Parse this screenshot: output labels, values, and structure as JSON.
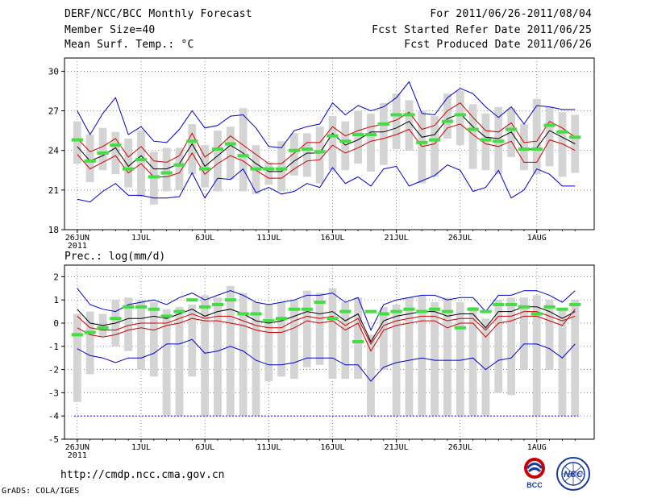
{
  "header": {
    "title": "DERF/NCC/BCC Monthly Forecast",
    "member_size": "Member Size=40",
    "var_top": "Mean Surf. Temp.: °C",
    "period": "For 2011/06/26-2011/08/04",
    "started": "Fcst Started Refer Date 2011/06/25",
    "produced": "Fcst Produced Date 2011/06/26"
  },
  "footer": {
    "url": "http://cmdp.ncc.cma.gov.cn",
    "grads": "GrADS: COLA/IGES",
    "logo_bcc": "BCC",
    "logo_ncc": "NCC"
  },
  "colors": {
    "grid": "#555555",
    "box": "#d4d4d4",
    "mean": "#000000",
    "spread": "#cc0000",
    "envelope": "#0000cc",
    "clim": "#44dd44"
  },
  "chart_data": [
    {
      "type": "line",
      "title": "Mean Surf. Temp.: °C",
      "ylim": [
        18,
        31
      ],
      "yticks": [
        18,
        21,
        24,
        27,
        30
      ],
      "x": [
        26,
        27,
        28,
        29,
        30,
        31,
        32,
        33,
        34,
        35,
        36,
        37,
        38,
        39,
        40,
        41,
        42,
        43,
        44,
        45,
        46,
        47,
        48,
        49,
        50,
        51,
        52,
        53,
        54,
        55,
        56,
        57,
        58,
        59,
        60,
        61,
        62,
        63,
        64,
        65
      ],
      "xticks": [
        {
          "x": 26,
          "label": "26JUN",
          "sub": "2011"
        },
        {
          "x": 31,
          "label": "1JUL"
        },
        {
          "x": 36,
          "label": "6JUL"
        },
        {
          "x": 41,
          "label": "11JUL"
        },
        {
          "x": 46,
          "label": "16JUL"
        },
        {
          "x": 51,
          "label": "21JUL"
        },
        {
          "x": 56,
          "label": "26JUL"
        },
        {
          "x": 62,
          "label": "1AUG"
        }
      ],
      "series": [
        {
          "name": "mean",
          "values": [
            24.3,
            23.2,
            23.6,
            24.2,
            22.8,
            23.6,
            22.6,
            22.6,
            23.0,
            24.5,
            22.8,
            23.6,
            24.4,
            23.8,
            23.0,
            22.4,
            22.4,
            23.2,
            23.8,
            23.8,
            25.3,
            24.4,
            24.8,
            25.4,
            25.4,
            25.7,
            26.2,
            25.0,
            25.2,
            26.4,
            26.8,
            25.8,
            25.0,
            24.9,
            25.4,
            24.0,
            24.2,
            25.5,
            25.0,
            24.5
          ]
        },
        {
          "name": "upper",
          "values": [
            24.9,
            23.9,
            24.3,
            24.9,
            23.5,
            24.3,
            23.2,
            23.1,
            23.6,
            25.3,
            23.5,
            24.2,
            25.1,
            24.4,
            23.7,
            23.0,
            23.0,
            23.8,
            24.6,
            24.6,
            25.8,
            25.1,
            25.5,
            25.8,
            26.0,
            26.3,
            26.9,
            25.6,
            25.9,
            27.0,
            27.6,
            26.5,
            25.5,
            25.4,
            26.1,
            24.6,
            24.7,
            26.2,
            25.7,
            25.0
          ]
        },
        {
          "name": "lower",
          "values": [
            23.7,
            22.6,
            23.1,
            23.6,
            22.3,
            23.0,
            22.0,
            22.0,
            22.3,
            23.8,
            22.2,
            23.0,
            23.6,
            23.2,
            22.5,
            21.9,
            21.9,
            22.6,
            23.2,
            23.3,
            24.4,
            23.8,
            24.2,
            24.7,
            24.9,
            25.2,
            25.6,
            24.3,
            24.5,
            25.7,
            26.0,
            25.2,
            24.5,
            24.3,
            24.7,
            23.1,
            23.1,
            24.8,
            24.5,
            24.0
          ]
        },
        {
          "name": "max",
          "values": [
            27.0,
            25.2,
            26.8,
            28.0,
            25.2,
            25.8,
            24.7,
            24.6,
            25.6,
            27.0,
            25.7,
            25.9,
            26.6,
            26.7,
            25.7,
            24.3,
            24.2,
            25.5,
            25.8,
            26.0,
            27.6,
            26.7,
            27.4,
            27.0,
            27.3,
            28.0,
            29.2,
            26.8,
            26.7,
            28.0,
            28.7,
            28.3,
            27.3,
            26.5,
            27.3,
            26.0,
            27.4,
            27.3,
            27.1,
            27.1
          ]
        },
        {
          "name": "min",
          "values": [
            20.3,
            20.1,
            20.9,
            21.5,
            20.6,
            20.6,
            20.4,
            20.4,
            20.5,
            22.3,
            20.4,
            21.9,
            21.8,
            22.6,
            20.8,
            21.2,
            20.7,
            20.9,
            21.5,
            21.2,
            22.7,
            21.5,
            22.0,
            21.3,
            22.6,
            22.8,
            21.3,
            21.7,
            22.1,
            22.9,
            22.5,
            20.9,
            21.2,
            22.5,
            20.4,
            21.0,
            22.6,
            22.2,
            21.3,
            21.3
          ]
        }
      ],
      "box_top": [
        26.2,
        25.2,
        25.7,
        25.4,
        24.9,
        25.5,
        23.9,
        24.2,
        24.2,
        26.0,
        24.4,
        25.5,
        25.8,
        27.2,
        24.4,
        23.1,
        24.7,
        25.3,
        25.3,
        25.8,
        26.6,
        26.2,
        27.0,
        26.8,
        27.6,
        28.3,
        27.8,
        27.0,
        26.6,
        28.3,
        28.5,
        27.5,
        26.8,
        27.3,
        27.2,
        26.0,
        27.9,
        27.3,
        26.9,
        26.7
      ],
      "box_bottom": [
        23.0,
        21.6,
        22.5,
        22.2,
        21.2,
        20.5,
        19.9,
        20.9,
        21.0,
        22.2,
        21.2,
        20.9,
        21.8,
        20.9,
        20.7,
        21.4,
        20.9,
        22.1,
        22.0,
        21.5,
        22.5,
        22.5,
        23.0,
        22.4,
        22.9,
        24.1,
        24.0,
        21.5,
        22.0,
        24.9,
        24.4,
        22.6,
        22.5,
        22.2,
        23.5,
        22.5,
        22.2,
        22.8,
        22.0,
        22.3
      ],
      "clim": [
        24.8,
        23.2,
        23.8,
        24.4,
        22.6,
        23.3,
        22.0,
        22.3,
        22.9,
        24.7,
        22.6,
        24.1,
        24.5,
        23.6,
        22.6,
        22.6,
        22.6,
        24.0,
        24.1,
        23.9,
        25.1,
        24.7,
        25.2,
        25.2,
        26.0,
        26.7,
        26.7,
        24.6,
        24.8,
        26.2,
        26.7,
        25.6,
        24.8,
        24.7,
        25.6,
        24.1,
        24.1,
        25.9,
        25.4,
        25.0
      ]
    },
    {
      "type": "line",
      "title": "Prec.: log(mm/d)",
      "ylim": [
        -5,
        2.5
      ],
      "yticks": [
        -5,
        -4,
        -3,
        -2,
        -1,
        0,
        1,
        2
      ],
      "x": [
        26,
        27,
        28,
        29,
        30,
        31,
        32,
        33,
        34,
        35,
        36,
        37,
        38,
        39,
        40,
        41,
        42,
        43,
        44,
        45,
        46,
        47,
        48,
        49,
        50,
        51,
        52,
        53,
        54,
        55,
        56,
        57,
        58,
        59,
        60,
        61,
        62,
        63,
        64,
        65
      ],
      "xticks": [
        {
          "x": 26,
          "label": "26JUN",
          "sub": "2011"
        },
        {
          "x": 31,
          "label": "1JUL"
        },
        {
          "x": 36,
          "label": "6JUL"
        },
        {
          "x": 41,
          "label": "11JUL"
        },
        {
          "x": 46,
          "label": "16JUL"
        },
        {
          "x": 51,
          "label": "21JUL"
        },
        {
          "x": 56,
          "label": "26JUL"
        },
        {
          "x": 62,
          "label": "1AUG"
        }
      ],
      "series": [
        {
          "name": "mean",
          "values": [
            0.6,
            0.0,
            -0.1,
            0.0,
            0.2,
            0.2,
            0.3,
            0.2,
            0.4,
            0.6,
            0.3,
            0.5,
            0.6,
            0.4,
            0.1,
            0.0,
            0.1,
            0.3,
            0.5,
            0.4,
            0.5,
            0.1,
            0.4,
            -0.8,
            0.1,
            0.3,
            0.4,
            0.5,
            0.5,
            0.3,
            0.4,
            0.4,
            -0.2,
            0.5,
            0.5,
            0.7,
            0.7,
            0.5,
            0.2,
            0.5
          ]
        },
        {
          "name": "upper",
          "values": [
            0.3,
            -0.2,
            -0.3,
            -0.3,
            -0.1,
            0.0,
            0.0,
            0.0,
            0.2,
            0.4,
            0.2,
            0.3,
            0.3,
            0.1,
            -0.1,
            -0.2,
            -0.2,
            0.1,
            0.3,
            0.2,
            0.3,
            -0.1,
            0.2,
            -0.9,
            -0.1,
            0.1,
            0.2,
            0.3,
            0.3,
            0.1,
            0.2,
            0.2,
            -0.3,
            0.3,
            0.3,
            0.5,
            0.5,
            0.3,
            0.1,
            0.3
          ]
        },
        {
          "name": "lower",
          "values": [
            -0.2,
            -0.5,
            -0.6,
            -0.5,
            -0.3,
            -0.2,
            -0.3,
            -0.1,
            0.0,
            0.2,
            0.1,
            0.1,
            0.0,
            -0.1,
            -0.3,
            -0.4,
            -0.4,
            -0.2,
            0.1,
            0.0,
            0.1,
            -0.3,
            0.0,
            -1.2,
            -0.3,
            -0.1,
            0.0,
            0.1,
            0.1,
            -0.2,
            0.0,
            0.0,
            -0.6,
            0.0,
            0.1,
            0.3,
            0.3,
            0.1,
            -0.1,
            0.6
          ]
        },
        {
          "name": "max",
          "values": [
            1.5,
            0.8,
            0.6,
            0.5,
            0.8,
            0.9,
            1.0,
            0.8,
            1.1,
            1.3,
            1.0,
            1.2,
            1.4,
            1.2,
            0.9,
            0.8,
            0.9,
            1.0,
            1.2,
            1.2,
            1.3,
            0.9,
            1.1,
            -0.3,
            0.8,
            1.0,
            1.1,
            1.2,
            1.2,
            1.0,
            1.1,
            1.1,
            0.5,
            1.2,
            1.2,
            1.4,
            1.4,
            1.2,
            0.9,
            1.4
          ]
        },
        {
          "name": "min",
          "values": [
            -1.1,
            -1.4,
            -1.5,
            -1.7,
            -1.5,
            -1.5,
            -1.3,
            -0.9,
            -0.9,
            -0.7,
            -1.3,
            -1.2,
            -1.0,
            -1.2,
            -1.6,
            -1.8,
            -1.8,
            -1.7,
            -1.5,
            -1.5,
            -1.5,
            -1.8,
            -1.8,
            -2.5,
            -1.9,
            -1.7,
            -1.6,
            -1.5,
            -1.6,
            -1.6,
            -1.6,
            -1.5,
            -2.0,
            -1.6,
            -1.5,
            -0.9,
            -0.9,
            -1.1,
            -1.5,
            -0.9
          ]
        }
      ],
      "box_top": [
        0.4,
        0.5,
        0.4,
        1.0,
        1.1,
        1.0,
        0.9,
        0.6,
        0.7,
        0.8,
        1.2,
        1.1,
        1.6,
        1.3,
        0.9,
        0.8,
        0.9,
        1.0,
        1.4,
        1.3,
        1.5,
        0.9,
        1.1,
        -0.5,
        0.7,
        0.8,
        1.1,
        1.2,
        0.9,
        1.1,
        0.9,
        0.7,
        0.2,
        1.0,
        1.1,
        1.1,
        1.2,
        1.0,
        0.6,
        1.0
      ],
      "box_bottom": [
        -3.4,
        -2.2,
        -0.6,
        -1.0,
        -1.2,
        -2.0,
        -2.3,
        -4.0,
        -4.0,
        -2.3,
        -4.0,
        -4.0,
        -4.0,
        -4.0,
        -4.0,
        -2.5,
        -2.3,
        -2.4,
        -1.9,
        -1.8,
        -2.4,
        -2.4,
        -2.4,
        -4.0,
        -2.0,
        -4.0,
        -4.0,
        -4.0,
        -4.0,
        -4.0,
        -4.0,
        -4.0,
        -4.0,
        -3.0,
        -3.1,
        -2.0,
        -4.0,
        -2.0,
        -4.0,
        -4.0
      ],
      "clim": [
        -0.5,
        -0.4,
        -0.2,
        0.2,
        0.7,
        0.7,
        0.6,
        0.3,
        0.5,
        1.0,
        0.7,
        0.8,
        1.0,
        0.4,
        0.4,
        0.1,
        0.2,
        0.6,
        0.6,
        0.9,
        0.2,
        0.5,
        -0.8,
        0.5,
        0.4,
        0.5,
        0.6,
        0.5,
        0.6,
        0.5,
        -0.2,
        0.6,
        0.5,
        0.8,
        0.8,
        0.7,
        0.4,
        0.7,
        0.6,
        0.8
      ],
      "threshold": -4.0
    }
  ]
}
